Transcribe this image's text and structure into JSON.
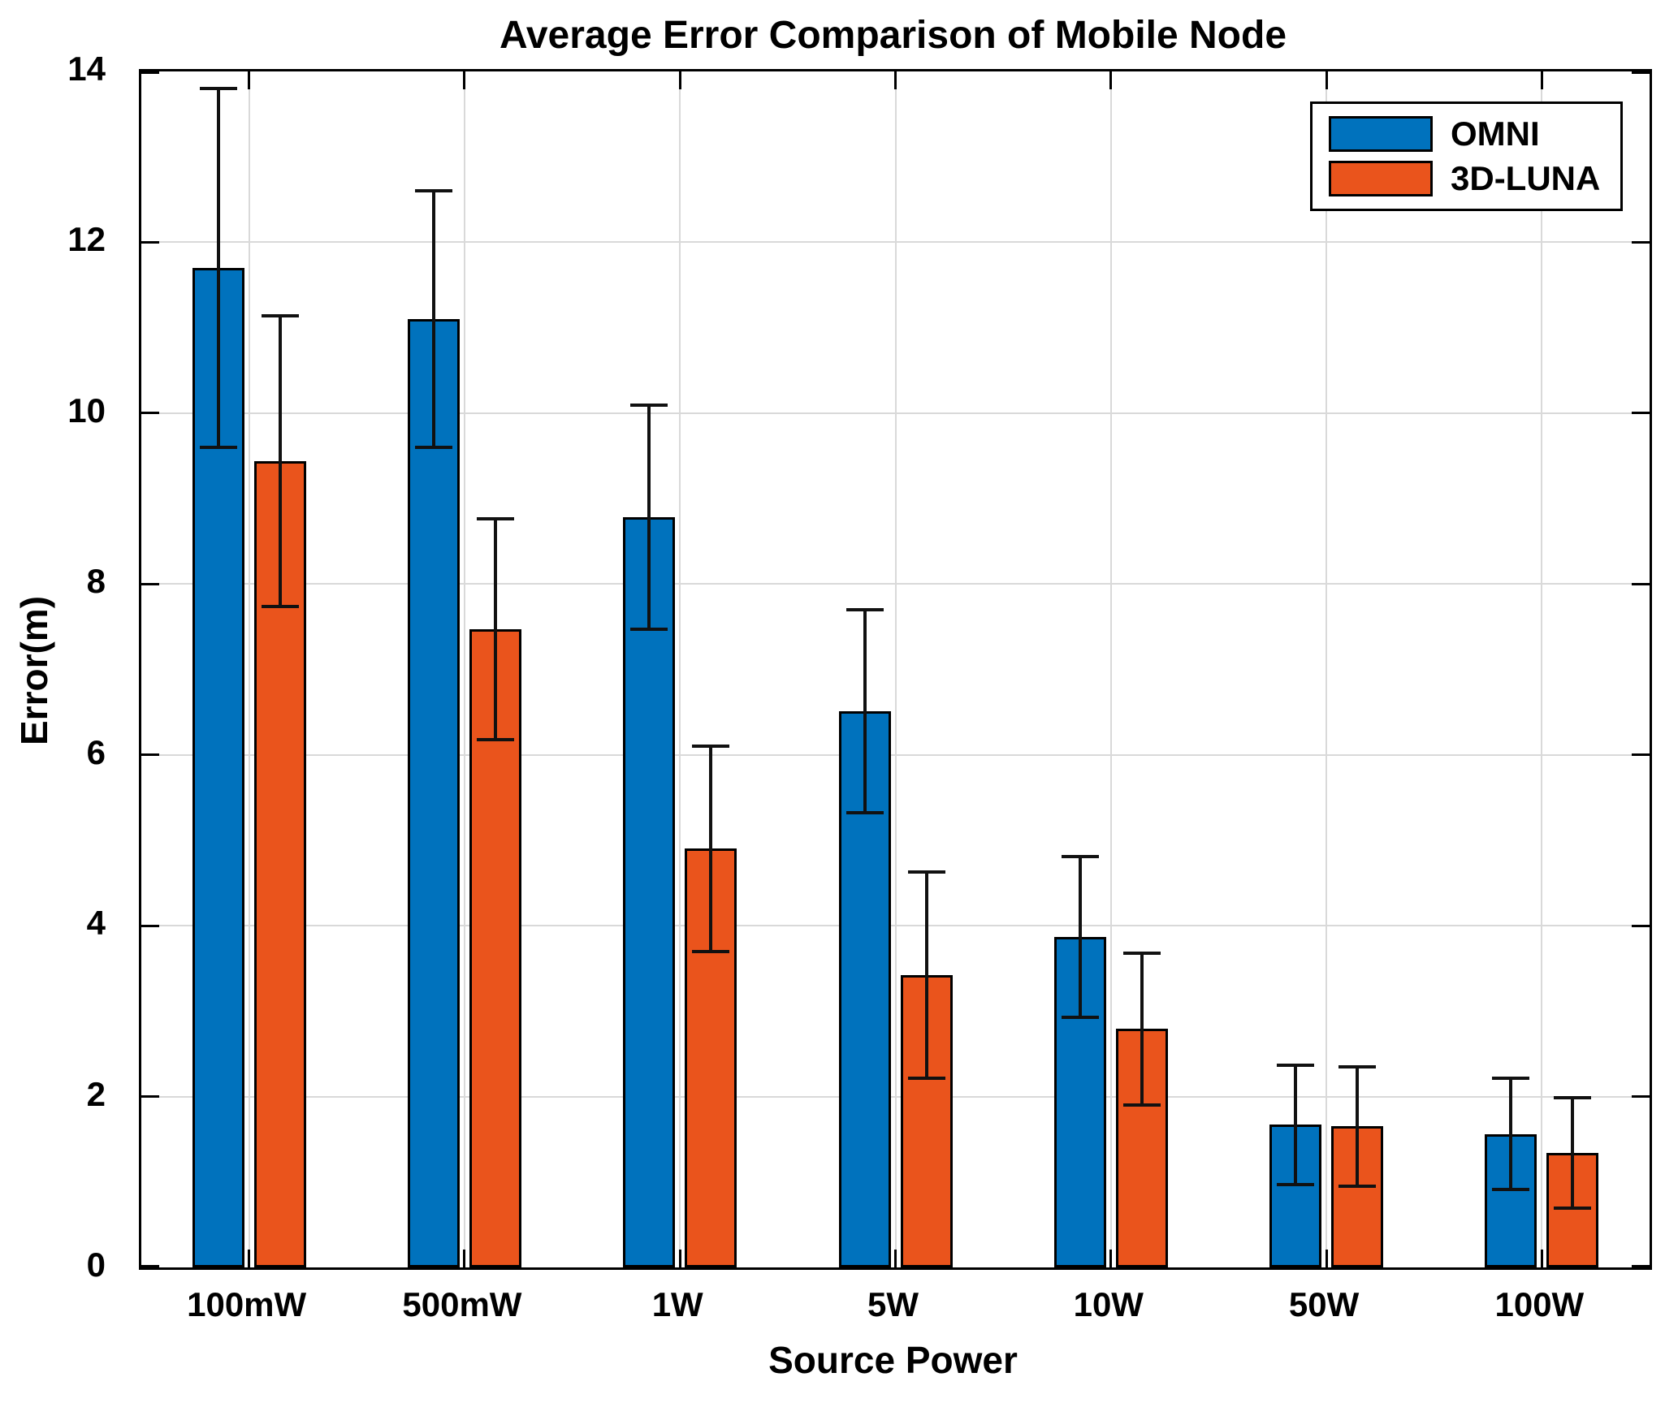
{
  "chart_data": {
    "type": "bar",
    "title": "Average Error Comparison of Mobile Node",
    "xlabel": "Source Power",
    "ylabel": "Error(m)",
    "categories": [
      "100mW",
      "500mW",
      "1W",
      "5W",
      "10W",
      "50W",
      "100W"
    ],
    "series": [
      {
        "name": "OMNI",
        "color": "#0072BD",
        "values": [
          11.7,
          11.1,
          8.78,
          6.51,
          3.87,
          1.67,
          1.56
        ],
        "errors": [
          2.1,
          1.5,
          1.31,
          1.19,
          0.94,
          0.7,
          0.65
        ]
      },
      {
        "name": "3D-LUNA",
        "color": "#EA541C",
        "values": [
          9.44,
          7.47,
          4.9,
          3.42,
          2.79,
          1.65,
          1.34
        ],
        "errors": [
          1.7,
          1.29,
          1.2,
          1.21,
          0.89,
          0.7,
          0.65
        ]
      }
    ],
    "ylim": [
      0,
      14
    ],
    "yticks": [
      0,
      2,
      4,
      6,
      8,
      10,
      12,
      14
    ],
    "grid": true,
    "legend_position": "top-right",
    "error_bar_color": "#111111",
    "grid_color": "#d9d9d9"
  }
}
